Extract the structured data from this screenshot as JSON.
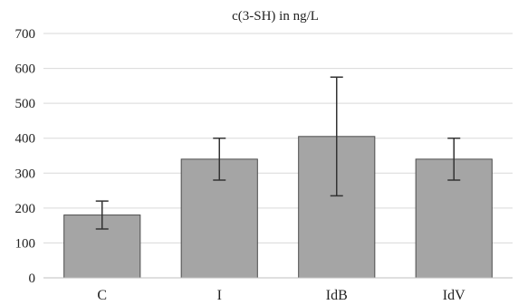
{
  "chart_data": {
    "type": "bar",
    "title": "c(3-SH) in ng/L",
    "xlabel": "",
    "ylabel": "",
    "categories": [
      "C",
      "I",
      "IdB",
      "IdV"
    ],
    "values": [
      180,
      340,
      405,
      340
    ],
    "error_low": [
      140,
      280,
      235,
      280
    ],
    "error_high": [
      220,
      400,
      575,
      400
    ],
    "ylim": [
      0,
      700
    ],
    "yticks": [
      0,
      100,
      200,
      300,
      400,
      500,
      600,
      700
    ],
    "ytick_labels": [
      "0",
      "100",
      "200",
      "300",
      "400",
      "500",
      "600",
      "700"
    ],
    "grid": true,
    "legend": "none",
    "colors": {
      "bar_fill": "#a5a5a5",
      "bar_stroke": "#4d4d4d",
      "grid": "#d9d9d9",
      "axis": "#bfbfbf",
      "error_bar": "#333333"
    }
  }
}
